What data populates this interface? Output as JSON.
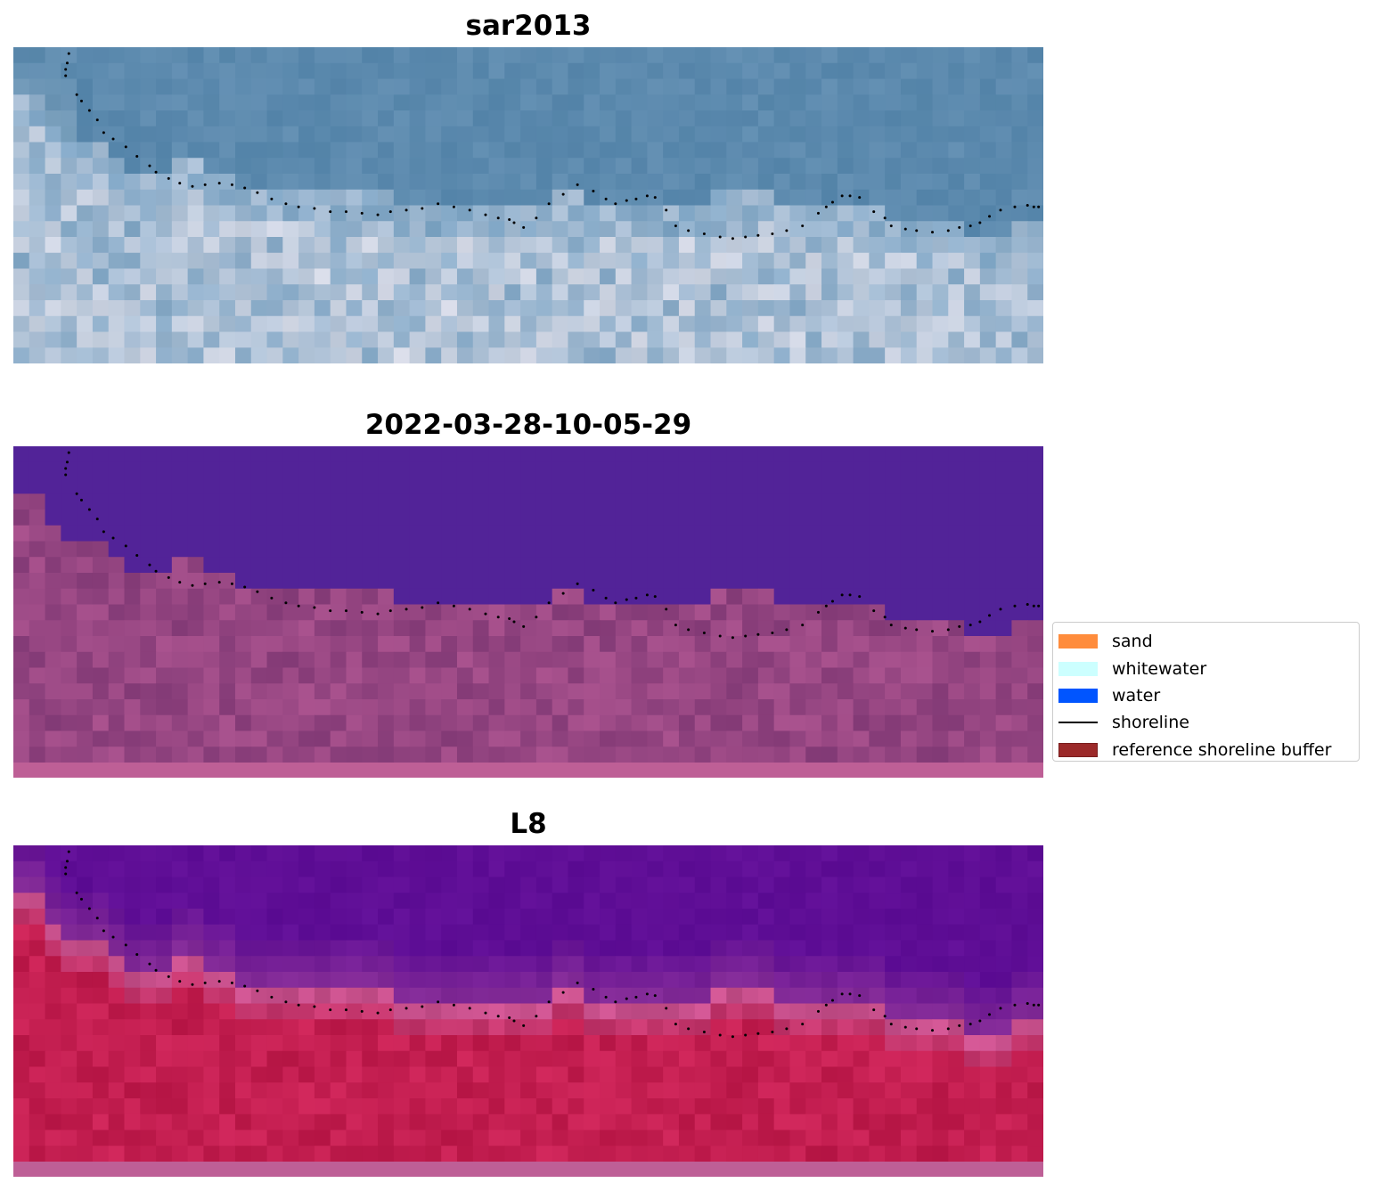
{
  "panels": [
    {
      "title": "sar2013",
      "style": "rgb"
    },
    {
      "title": "2022-03-28-10-05-29",
      "style": "classified"
    },
    {
      "title": "L8",
      "style": "ndwi"
    }
  ],
  "legend": {
    "items": [
      {
        "label": "sand",
        "color": "#FF8C3C",
        "kind": "patch"
      },
      {
        "label": "whitewater",
        "color": "#CCFFFF",
        "kind": "patch"
      },
      {
        "label": "water",
        "color": "#0055FF",
        "kind": "patch"
      },
      {
        "label": "shoreline",
        "color": "#000000",
        "kind": "line"
      },
      {
        "label": "reference shoreline buffer",
        "color": "#9C2A2A",
        "kind": "patch"
      }
    ]
  },
  "chart_data": {
    "type": "heatmap",
    "grid": false,
    "legend_placement": "right",
    "shoreline": {
      "name": "shoreline",
      "marker": "dotted",
      "x": [
        3.5,
        3.4,
        3.3,
        3.3,
        4.0,
        4.3,
        4.8,
        5.3,
        5.7,
        6.3,
        7.1,
        7.8,
        8.6,
        9.0,
        9.8,
        10.5,
        11.3,
        12.1,
        13.0,
        13.8,
        14.6,
        15.4,
        16.3,
        17.2,
        18.0,
        19.0,
        20.0,
        21.0,
        22.0,
        23.0,
        23.8,
        24.8,
        25.8,
        26.8,
        27.8,
        28.8,
        29.8,
        30.6,
        31.3,
        31.6,
        32.2,
        33.0,
        33.8,
        34.7,
        35.6,
        36.6,
        37.4,
        38.0,
        38.7,
        39.3,
        40.0,
        40.5,
        41.2,
        41.8,
        42.6,
        43.6,
        44.6,
        45.4,
        46.2,
        47.0,
        47.9,
        48.8,
        49.8,
        50.8,
        51.3,
        51.7,
        52.3,
        52.8,
        53.4,
        54.3,
        55.0,
        55.4,
        56.3,
        57.0,
        58.0,
        59.0,
        59.7,
        60.4,
        61.0,
        61.6,
        62.3,
        63.2,
        64.0,
        64.4,
        64.7
      ],
      "y": [
        0.4,
        1.0,
        1.4,
        1.8,
        3.0,
        3.4,
        4.0,
        4.6,
        5.4,
        5.8,
        6.3,
        6.9,
        7.5,
        7.9,
        8.3,
        8.6,
        8.8,
        8.7,
        8.6,
        8.7,
        8.9,
        9.2,
        9.6,
        9.9,
        10.1,
        10.2,
        10.4,
        10.4,
        10.5,
        10.6,
        10.4,
        10.3,
        10.2,
        9.9,
        10.1,
        10.3,
        10.6,
        10.8,
        10.9,
        11.1,
        11.4,
        10.8,
        9.9,
        9.3,
        8.7,
        9.1,
        9.6,
        9.9,
        9.7,
        9.6,
        9.4,
        9.5,
        10.3,
        11.3,
        11.6,
        11.8,
        12.0,
        12.1,
        12.0,
        11.9,
        11.8,
        11.6,
        11.3,
        10.5,
        10.1,
        9.8,
        9.4,
        9.4,
        9.5,
        10.4,
        10.8,
        11.3,
        11.5,
        11.6,
        11.7,
        11.6,
        11.4,
        11.3,
        11.1,
        10.7,
        10.3,
        10.1,
        10.0,
        10.1,
        10.1
      ]
    },
    "water_extent_rows": [
      3,
      3,
      5,
      6,
      6,
      6,
      7,
      8,
      8,
      8,
      7,
      7,
      8,
      8,
      9,
      9,
      9,
      9,
      9,
      9,
      9,
      9,
      9,
      9,
      10,
      10,
      10,
      10,
      10,
      10,
      10,
      10,
      10,
      10,
      9,
      9,
      10,
      10,
      10,
      10,
      10,
      10,
      10,
      10,
      9,
      9,
      9,
      9,
      10,
      10,
      10,
      10,
      10,
      10,
      10,
      11,
      11,
      11,
      11,
      11,
      12,
      12,
      12,
      11,
      11
    ]
  }
}
